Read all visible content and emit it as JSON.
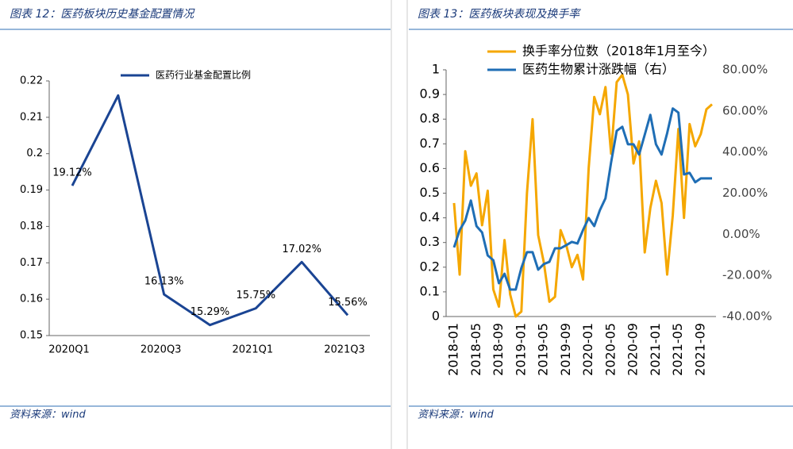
{
  "chart_data": [
    {
      "type": "line",
      "title": "图表 12：医药板块历史基金配置情况",
      "source": "资料来源：wind",
      "categories": [
        "2020Q1",
        null,
        "2020Q3",
        null,
        "2021Q1",
        null,
        "2021Q3"
      ],
      "series": [
        {
          "name": "医药行业基金配置比例",
          "color": "#1a4493",
          "values": [
            0.1912,
            0.216,
            0.1613,
            0.1529,
            0.1575,
            0.1702,
            0.1556
          ],
          "value_labels": [
            "19.12%",
            null,
            "16.13%",
            "15.29%",
            "15.75%",
            "17.02%",
            "15.56%"
          ]
        }
      ],
      "ylim": [
        0.15,
        0.22
      ],
      "yticks": [
        0.15,
        0.16,
        0.17,
        0.18,
        0.19,
        0.2,
        0.21,
        0.22
      ]
    },
    {
      "type": "line",
      "title": "图表 13：医药板块表现及换手率",
      "source": "资料来源：wind",
      "categories": [
        "2018-01",
        null,
        null,
        null,
        "2018-05",
        null,
        null,
        null,
        "2018-09",
        null,
        null,
        null,
        "2019-01",
        null,
        null,
        null,
        "2019-05",
        null,
        null,
        null,
        "2019-09",
        null,
        null,
        null,
        "2020-01",
        null,
        null,
        null,
        "2020-05",
        null,
        null,
        null,
        "2020-09",
        null,
        null,
        null,
        "2021-01",
        null,
        null,
        null,
        "2021-05",
        null,
        null,
        null,
        "2021-09",
        null,
        null
      ],
      "series": [
        {
          "name": "换手率分位数（2018年1月至今）",
          "color": "#f5a700",
          "values": [
            0.46,
            0.17,
            0.67,
            0.53,
            0.58,
            0.37,
            0.51,
            0.11,
            0.04,
            0.31,
            0.09,
            0.0,
            0.02,
            0.5,
            0.8,
            0.33,
            0.22,
            0.06,
            0.08,
            0.35,
            0.29,
            0.2,
            0.25,
            0.15,
            0.6,
            0.89,
            0.82,
            0.93,
            0.66,
            0.95,
            0.98,
            0.9,
            0.62,
            0.71,
            0.26,
            0.44,
            0.55,
            0.46,
            0.17,
            0.41,
            0.76,
            0.4,
            0.78,
            0.69,
            0.74,
            0.84,
            0.86
          ]
        },
        {
          "name": "医药生物累计涨跌幅（右）",
          "color": "#1f6eb5",
          "axis": "y2",
          "values": [
            -6.4,
            2,
            6.7,
            16.4,
            4,
            0.9,
            -10.3,
            -12.6,
            -23.8,
            -19.2,
            -26.9,
            -26.9,
            -16.4,
            -8.7,
            -8.7,
            -17.2,
            -14.5,
            -13.4,
            -6.8,
            -6.8,
            -5.3,
            -3.7,
            -4.5,
            2.1,
            7.9,
            4,
            11.7,
            17.5,
            34.9,
            50.3,
            52.3,
            43.8,
            43.8,
            38.8,
            48.4,
            58.1,
            43.8,
            38.8,
            49.2,
            61.2,
            59.2,
            29.1,
            29.9,
            25.3,
            27.2,
            27.2,
            27.2
          ]
        }
      ],
      "ylim": [
        0,
        1
      ],
      "yticks": [
        0,
        0.1,
        0.2,
        0.3,
        0.4,
        0.5,
        0.6,
        0.7,
        0.8,
        0.9,
        1
      ],
      "y2lim": [
        -40,
        80
      ],
      "y2ticks": [
        {
          "value": -40,
          "label": "-40.00%"
        },
        {
          "value": -20,
          "label": "-20.00%"
        },
        {
          "value": 0,
          "label": "0.00%"
        },
        {
          "value": 20,
          "label": "20.00%"
        },
        {
          "value": 40,
          "label": "40.00%"
        },
        {
          "value": 60,
          "label": "60.00%"
        },
        {
          "value": 80,
          "label": "80.00%"
        }
      ]
    }
  ]
}
